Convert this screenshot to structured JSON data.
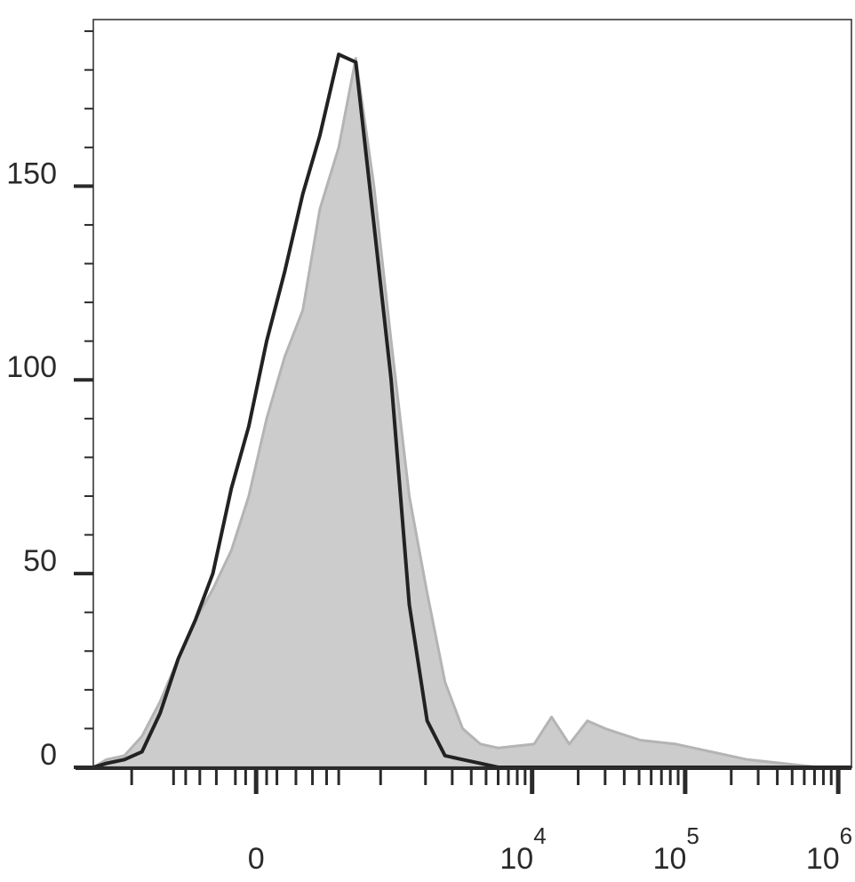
{
  "chart_data": {
    "type": "area",
    "xscale": "asinh",
    "x": [
      -1810,
      -1480,
      -1120,
      -850,
      -630,
      -460,
      -330,
      -220,
      -120,
      -35,
      50,
      140,
      240,
      350,
      500,
      670,
      900,
      1180,
      1560,
      2050,
      2690,
      3510,
      4590,
      6000,
      10300,
      13400,
      17500,
      23000,
      30000,
      51000,
      87000,
      149000,
      255000,
      436000,
      747000,
      1220000
    ],
    "series": [
      {
        "color": "#cccccc",
        "edge": "#b4b4b4",
        "fill": true,
        "values": [
          0,
          2,
          3,
          8,
          17,
          28,
          38,
          46,
          56,
          70,
          90,
          106,
          118,
          144,
          160,
          183,
          150,
          110,
          70,
          45,
          22,
          10,
          6,
          5,
          6,
          13,
          6,
          12,
          10,
          7,
          6,
          4,
          2,
          1,
          0,
          0
        ]
      },
      {
        "color": "#222222",
        "fill": false,
        "values": [
          0,
          1,
          2,
          4,
          14,
          28,
          38,
          50,
          72,
          88,
          110,
          128,
          148,
          163,
          184,
          182,
          140,
          100,
          42,
          12,
          3,
          2,
          1,
          0,
          0,
          0,
          0,
          0,
          0,
          0,
          0,
          0,
          0,
          0,
          0,
          0
        ]
      }
    ],
    "xlim": [
      -1810,
      1220000
    ],
    "xticks": [
      {
        "value": 0,
        "label": "0"
      },
      {
        "value": 10000,
        "label": "10",
        "exponent": "4"
      },
      {
        "value": 100000,
        "label": "10",
        "exponent": "5"
      },
      {
        "value": 1000000,
        "label": "10",
        "exponent": "6"
      }
    ],
    "xminorticks": [
      -1000,
      -500,
      -400,
      -300,
      -200,
      -100,
      -50,
      50,
      100,
      200,
      300,
      400,
      500,
      1000,
      2000,
      3000,
      4000,
      5000,
      6000,
      7000,
      8000,
      9000,
      20000,
      30000,
      40000,
      50000,
      60000,
      70000,
      80000,
      90000,
      200000,
      300000,
      400000,
      500000,
      600000,
      700000,
      800000,
      900000
    ],
    "ylim": [
      0,
      193
    ],
    "yticks": [
      0,
      50,
      100,
      150
    ],
    "yminorticks": [
      10,
      20,
      30,
      40,
      60,
      70,
      80,
      90,
      110,
      120,
      130,
      140,
      160,
      170,
      180,
      190
    ]
  }
}
